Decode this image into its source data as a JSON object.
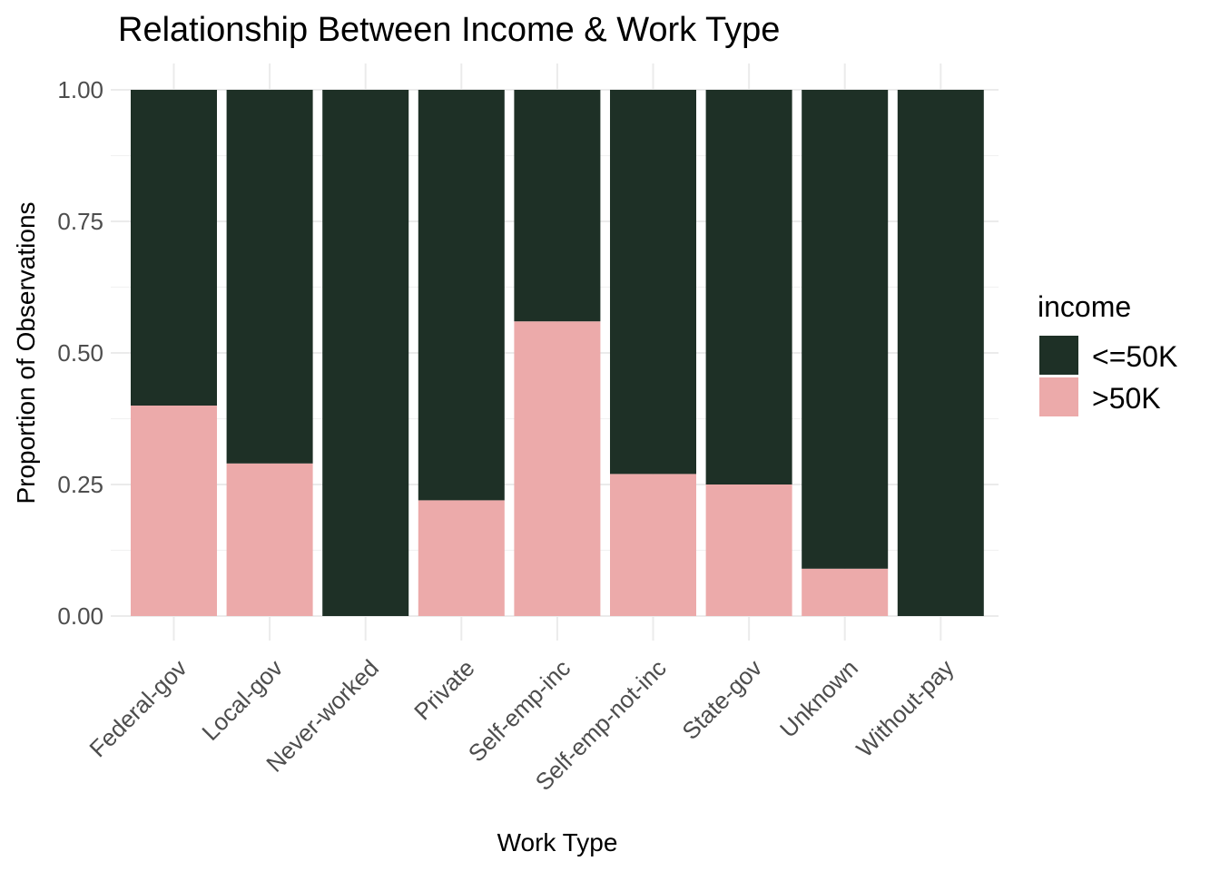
{
  "chart_data": {
    "type": "bar",
    "stacked": "proportion",
    "title": "Relationship Between Income & Work Type",
    "xlabel": "Work Type",
    "ylabel": "Proportion of Observations",
    "ylim": [
      0,
      1
    ],
    "yticks": [
      0,
      0.25,
      0.5,
      0.75,
      1
    ],
    "ytick_labels": [
      "0.00",
      "0.25",
      "0.50",
      "0.75",
      "1.00"
    ],
    "grid": true,
    "categories": [
      "Federal-gov",
      "Local-gov",
      "Never-worked",
      "Private",
      "Self-emp-inc",
      "Self-emp-not-inc",
      "State-gov",
      "Unknown",
      "Without-pay"
    ],
    "series": [
      {
        "name": ">50K",
        "color": "#ecaaaa",
        "values": [
          0.4,
          0.29,
          0.0,
          0.22,
          0.56,
          0.27,
          0.25,
          0.09,
          0.0
        ]
      },
      {
        "name": "<=50K",
        "color": "#1e3026",
        "values": [
          0.6,
          0.71,
          1.0,
          0.78,
          0.44,
          0.73,
          0.75,
          0.91,
          1.0
        ]
      }
    ],
    "legend": {
      "title": "income",
      "position": "right",
      "entries": [
        {
          "label": "<=50K",
          "color": "#1e3026"
        },
        {
          "label": ">50K",
          "color": "#ecaaaa"
        }
      ]
    }
  }
}
